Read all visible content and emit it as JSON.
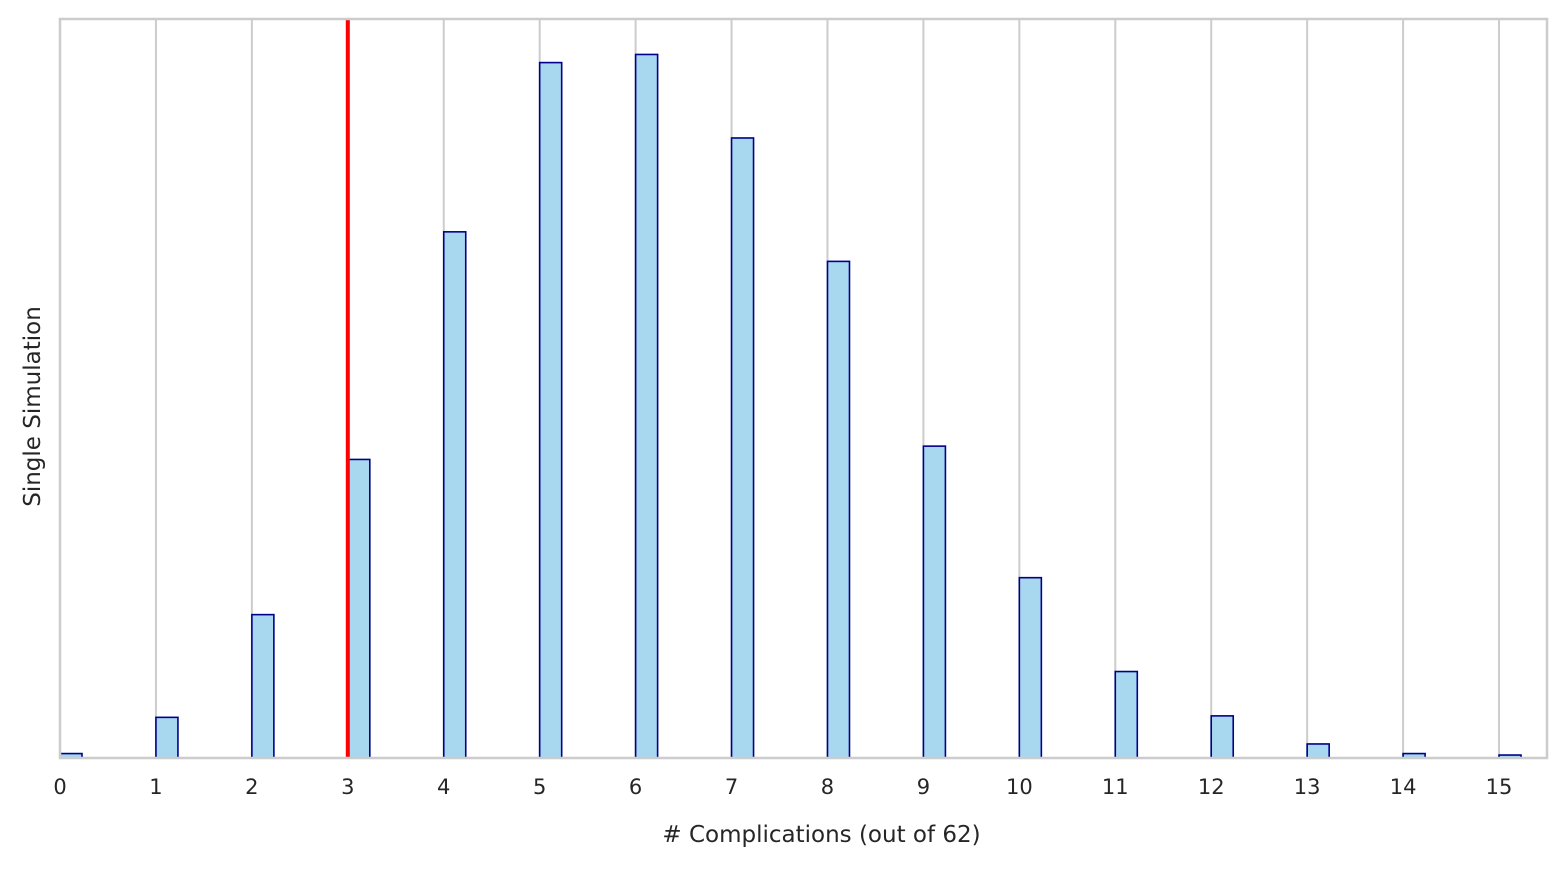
{
  "chart_data": {
    "type": "bar",
    "title": "",
    "xlabel": "# Complications (out of 62)",
    "ylabel": "Single Simulation",
    "xlim": [
      0,
      15.5
    ],
    "ylim": [
      0,
      1.0
    ],
    "xticks": [
      "0",
      "1",
      "2",
      "3",
      "4",
      "5",
      "6",
      "7",
      "8",
      "9",
      "10",
      "11",
      "12",
      "13",
      "14",
      "15"
    ],
    "grid": {
      "x": true,
      "y": false
    },
    "legend": "none",
    "series": [
      {
        "x": [
          0,
          1,
          2,
          3,
          4,
          5,
          6,
          7,
          8,
          9,
          10,
          11,
          12,
          13,
          14,
          15
        ],
        "values": [
          0.006,
          0.055,
          0.194,
          0.404,
          0.712,
          0.941,
          0.952,
          0.839,
          0.672,
          0.422,
          0.244,
          0.117,
          0.057,
          0.019,
          0.006,
          0.004
        ]
      }
    ],
    "reference_line": {
      "x": 3,
      "color": "#ff0000"
    },
    "colors": {
      "bar_fill": "#a8d8f0",
      "bar_edge": "#00008b",
      "grid": "#cccccc",
      "spine": "#cccccc",
      "text": "#262626"
    }
  }
}
